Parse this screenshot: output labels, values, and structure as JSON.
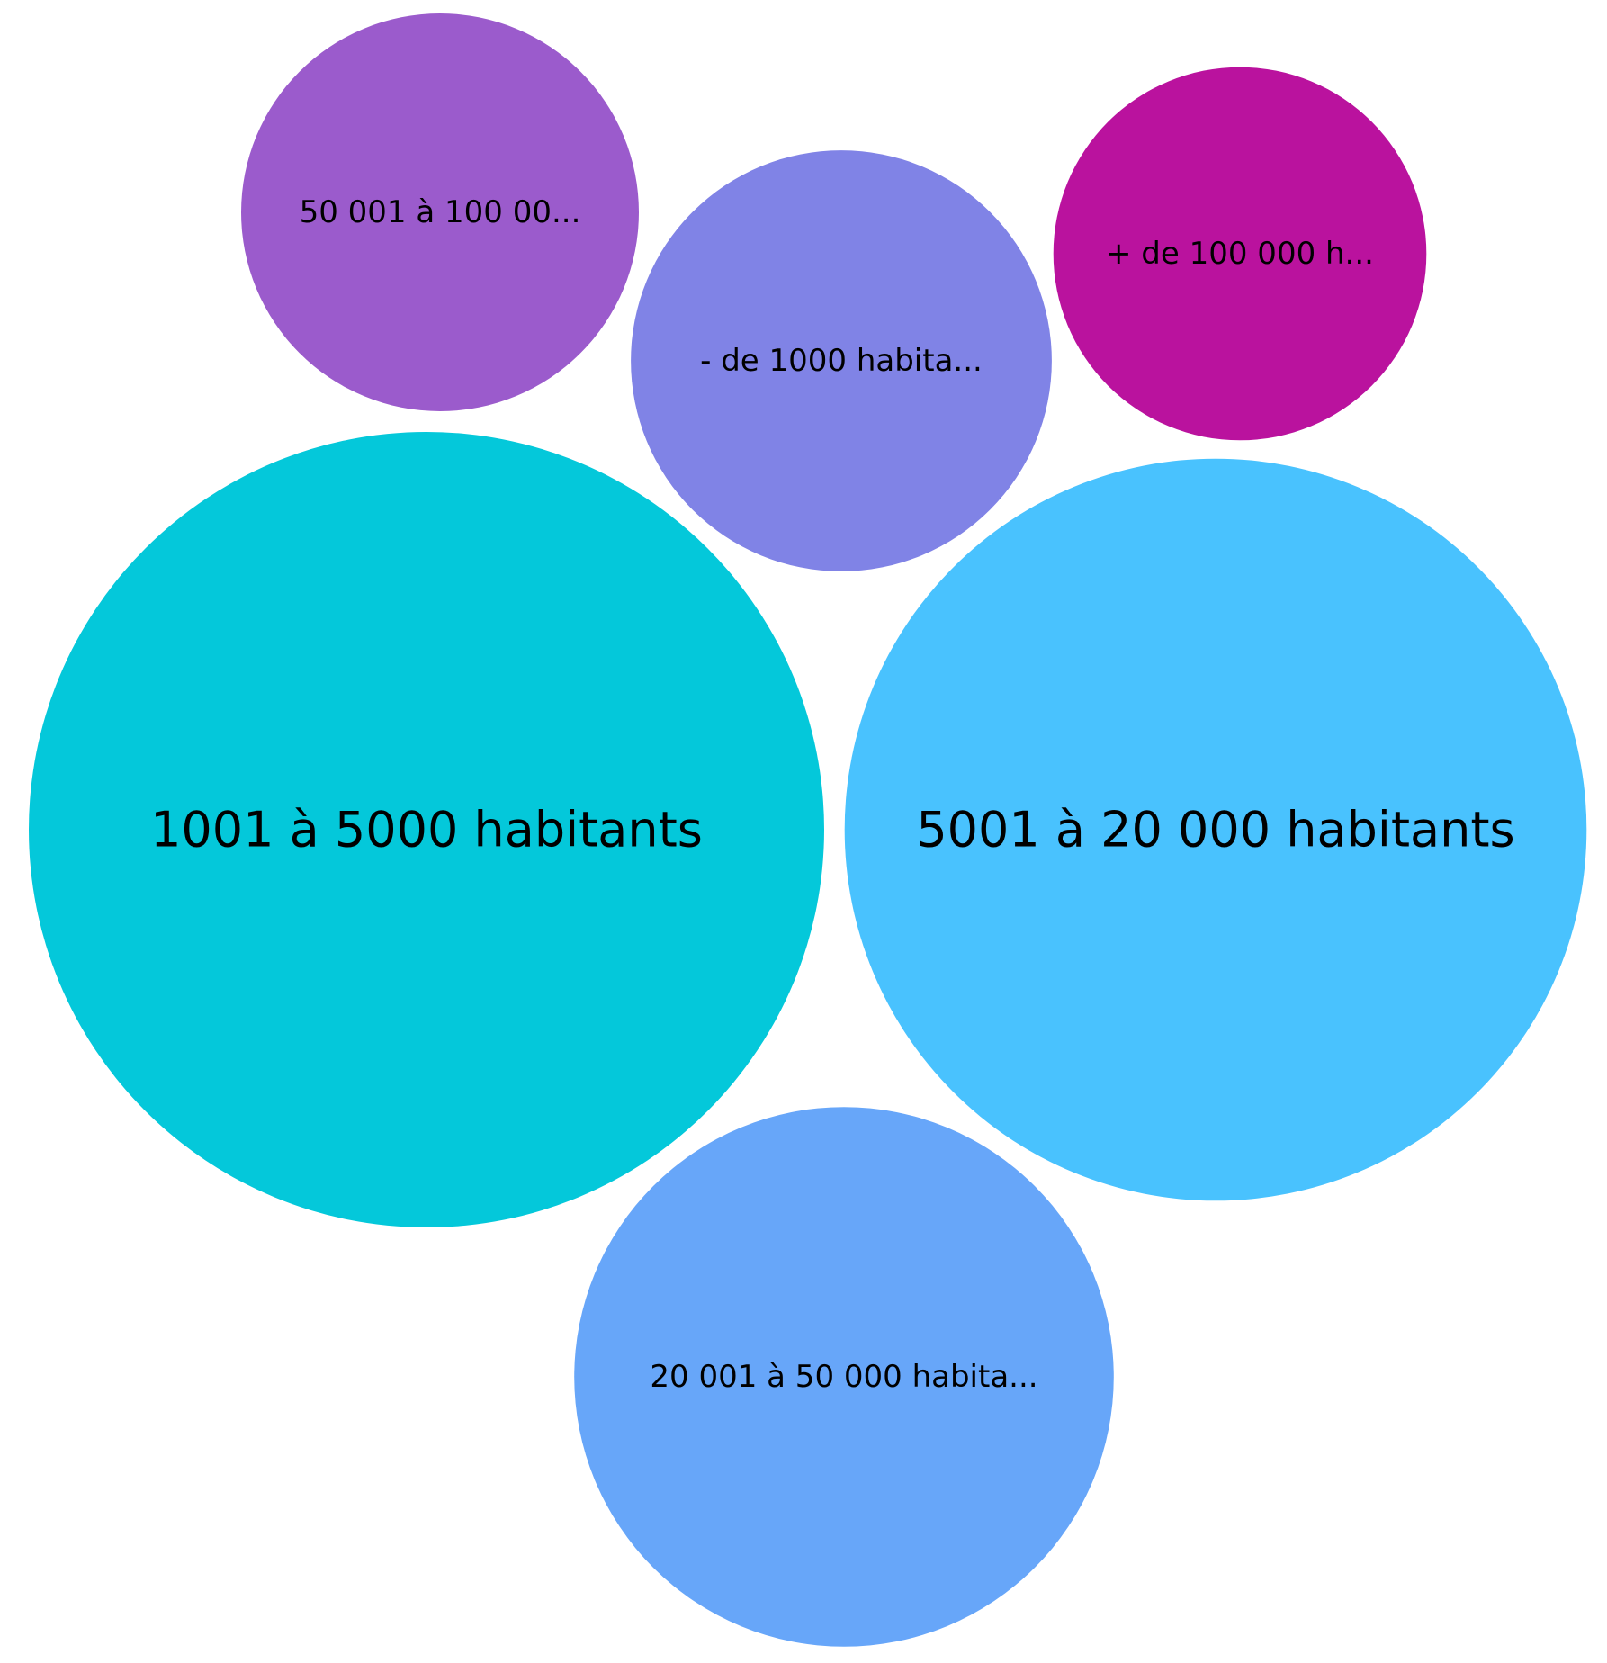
{
  "chart_data": {
    "type": "bubble",
    "title": "",
    "legend": "none",
    "bubbles": [
      {
        "label": "1001 à 5000 habitants",
        "display_label": "1001 à 5000 habitants",
        "value": 100,
        "color": "#04C8DA"
      },
      {
        "label": "5001 à 20 000 habitants",
        "display_label": "5001 à 20 000 habitants",
        "value": 87,
        "color": "#49C2FE"
      },
      {
        "label": "20 001 à 50 000 habitants",
        "display_label": "20 001 à 50 000 habita...",
        "value": 46,
        "color": "#67A6F9"
      },
      {
        "label": "- de 1000 habitants",
        "display_label": "- de 1000 habita...",
        "value": 28,
        "color": "#8083E6"
      },
      {
        "label": "50 001 à 100 000 habitants",
        "display_label": "50 001 à 100 00...",
        "value": 25,
        "color": "#9B5BCC"
      },
      {
        "label": "+ de 100 000 habitants",
        "display_label": "+ de 100 000 h...",
        "value": 22,
        "color": "#BA129E"
      }
    ]
  }
}
